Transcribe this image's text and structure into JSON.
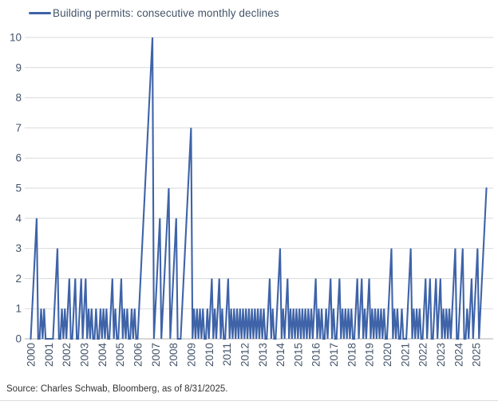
{
  "legend": {
    "label": "Building permits: consecutive monthly declines"
  },
  "source": "Source: Charles Schwab, Bloomberg, as of 8/31/2025.",
  "colors": {
    "line": "#3E63A8",
    "grid": "#D9D9D9",
    "axis": "#BFBFBF",
    "tick_text": "#44546A",
    "source_text": "#333333"
  },
  "chart_data": {
    "type": "line",
    "title": "Building permits: consecutive monthly declines",
    "ylabel": "",
    "xlabel": "",
    "unit": "consecutive months of decline",
    "x_start": "2000-01",
    "x_end": "2025-08",
    "x_frequency": "monthly",
    "x_tick_labels": [
      "2000",
      "2001",
      "2002",
      "2003",
      "2004",
      "2005",
      "2006",
      "2007",
      "2008",
      "2009",
      "2010",
      "2011",
      "2012",
      "2013",
      "2014",
      "2015",
      "2016",
      "2017",
      "2018",
      "2019",
      "2020",
      "2021",
      "2022",
      "2023",
      "2024",
      "2025"
    ],
    "ylim": [
      0,
      10
    ],
    "yticks": [
      0,
      1,
      2,
      3,
      4,
      5,
      6,
      7,
      8,
      9,
      10
    ],
    "grid": "horizontal",
    "legend_position": "top-left",
    "notable_points": [
      {
        "x": "2006-11",
        "y": 10
      },
      {
        "x": "2007-10",
        "y": 5
      },
      {
        "x": "2009-01",
        "y": 7
      },
      {
        "x": "2025-08",
        "y": 5
      }
    ],
    "series": [
      {
        "name": "Building permits: consecutive monthly declines",
        "values": [
          0,
          1,
          2,
          3,
          4,
          0,
          0,
          1,
          0,
          1,
          0,
          0,
          0,
          0,
          0,
          0,
          1,
          2,
          3,
          0,
          0,
          1,
          0,
          1,
          0,
          1,
          2,
          0,
          0,
          1,
          2,
          0,
          0,
          1,
          2,
          0,
          1,
          2,
          0,
          1,
          0,
          1,
          0,
          0,
          1,
          0,
          0,
          1,
          0,
          1,
          0,
          1,
          0,
          0,
          1,
          2,
          0,
          1,
          0,
          0,
          1,
          2,
          0,
          1,
          0,
          1,
          0,
          0,
          1,
          0,
          1,
          0,
          0,
          1,
          2,
          3,
          4,
          5,
          6,
          7,
          8,
          9,
          10,
          0,
          1,
          2,
          3,
          4,
          0,
          1,
          2,
          3,
          4,
          5,
          0,
          1,
          2,
          3,
          4,
          0,
          0,
          0,
          1,
          2,
          3,
          4,
          5,
          6,
          7,
          0,
          1,
          0,
          1,
          0,
          1,
          0,
          1,
          0,
          0,
          1,
          0,
          1,
          2,
          0,
          1,
          0,
          1,
          2,
          0,
          1,
          0,
          0,
          1,
          2,
          0,
          1,
          0,
          1,
          0,
          1,
          0,
          1,
          0,
          1,
          0,
          1,
          0,
          1,
          0,
          1,
          0,
          1,
          0,
          1,
          0,
          1,
          0,
          1,
          0,
          0,
          1,
          2,
          0,
          1,
          0,
          0,
          1,
          2,
          3,
          0,
          1,
          0,
          1,
          2,
          0,
          1,
          0,
          1,
          0,
          1,
          0,
          1,
          0,
          1,
          0,
          1,
          0,
          1,
          0,
          1,
          0,
          1,
          2,
          0,
          1,
          0,
          1,
          0,
          0,
          1,
          0,
          1,
          2,
          0,
          1,
          0,
          0,
          1,
          2,
          0,
          1,
          0,
          1,
          0,
          1,
          0,
          1,
          0,
          0,
          1,
          2,
          0,
          1,
          2,
          0,
          1,
          0,
          1,
          2,
          0,
          1,
          0,
          1,
          0,
          1,
          0,
          1,
          0,
          1,
          0,
          0,
          1,
          2,
          3,
          0,
          1,
          0,
          1,
          0,
          0,
          1,
          0,
          0,
          0,
          1,
          2,
          3,
          0,
          1,
          0,
          1,
          0,
          1,
          0,
          0,
          1,
          2,
          0,
          1,
          2,
          0,
          0,
          1,
          2,
          0,
          1,
          2,
          0,
          1,
          0,
          1,
          0,
          1,
          0,
          1,
          2,
          3,
          0,
          0,
          1,
          2,
          3,
          0,
          0,
          1,
          0,
          1,
          2,
          0,
          1,
          2,
          3,
          0,
          1,
          2,
          3,
          4,
          5
        ]
      }
    ]
  }
}
